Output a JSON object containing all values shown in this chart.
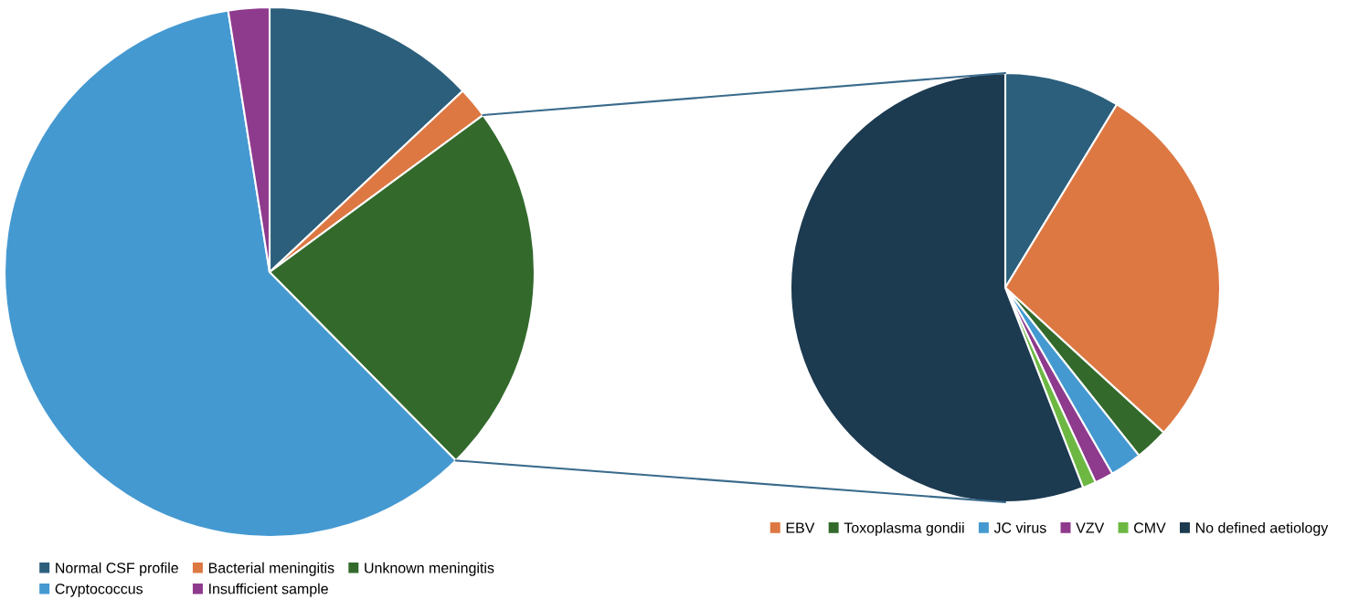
{
  "chart_data": [
    {
      "type": "pie",
      "categories": [
        "Normal CSF profile",
        "Bacterial meningitis",
        "Unknown meningitis",
        "Cryptococcus",
        "Insufficient sample"
      ],
      "values": [
        13.0,
        1.9,
        22.7,
        59.9,
        2.5
      ],
      "colors": [
        "#2c5f7c",
        "#dd7843",
        "#336a2c",
        "#4599d1",
        "#8e3a8d"
      ],
      "legend": "bottom left"
    },
    {
      "type": "pie",
      "categories": [
        null,
        "EBV",
        "Toxoplasma gondii",
        "JC virus",
        "VZV",
        "CMV",
        "No defined aetiology"
      ],
      "values": [
        8.7,
        28.1,
        2.5,
        2.4,
        1.4,
        1.0,
        55.9
      ],
      "colors": [
        "#2c5f7c",
        "#dd7843",
        "#336a2c",
        "#4599d1",
        "#8e3a8d",
        "#6cb843",
        "#1c3a50"
      ],
      "legend": "bottom right"
    }
  ]
}
